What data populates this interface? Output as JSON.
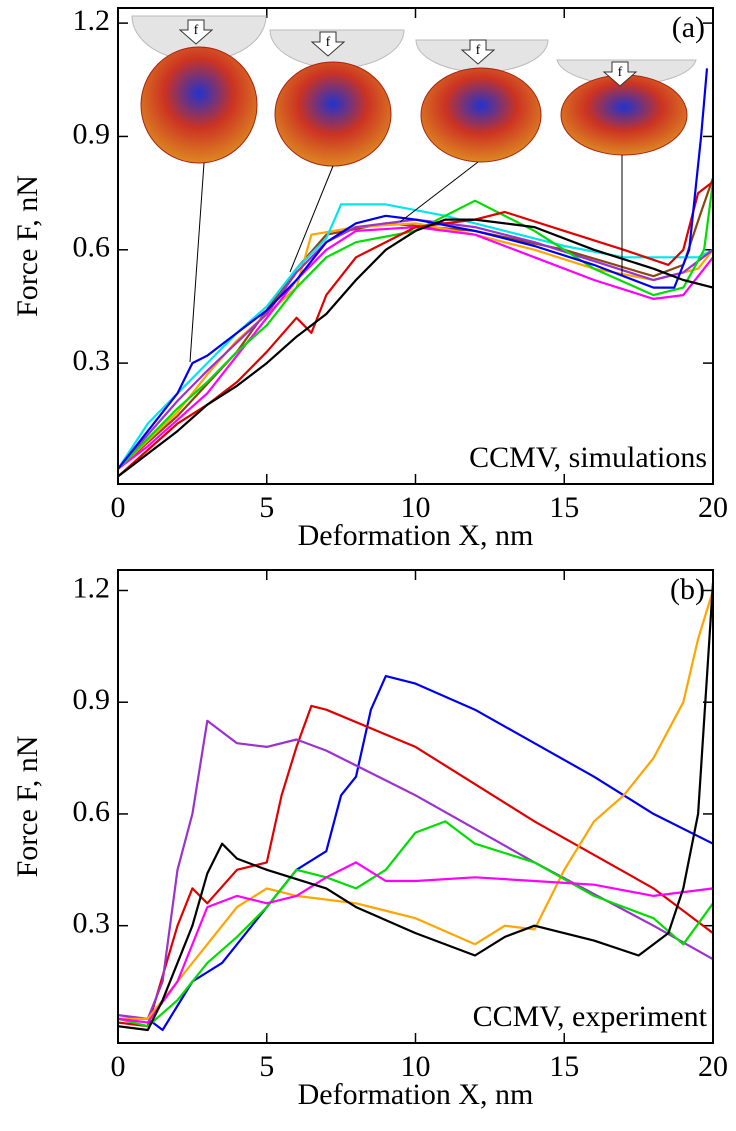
{
  "chart_data": [
    {
      "type": "line",
      "panel_label": "(a)",
      "annotation": "CCMV, simulations",
      "indenter_label": "f",
      "xlabel": "Deformation X, nm",
      "ylabel": "Force F, nN",
      "xlim": [
        0,
        20
      ],
      "xticks": [
        0,
        5,
        10,
        15,
        20
      ],
      "ylim": [
        -0.02,
        1.24
      ],
      "yticks": [
        0.3,
        0.6,
        0.9,
        1.2
      ],
      "grid": false,
      "series": [
        {
          "color": "#8b4513",
          "x": [
            0,
            2,
            4,
            6,
            7,
            9,
            12,
            15,
            18,
            19,
            19.6,
            20
          ],
          "values": [
            0.02,
            0.16,
            0.33,
            0.55,
            0.64,
            0.67,
            0.65,
            0.6,
            0.53,
            0.56,
            0.7,
            0.79
          ]
        },
        {
          "color": "#ffa500",
          "x": [
            0,
            2,
            3,
            4,
            5,
            6,
            6.5,
            8,
            10,
            12,
            14,
            16,
            18,
            19.5,
            20
          ],
          "values": [
            0.02,
            0.17,
            0.27,
            0.36,
            0.43,
            0.5,
            0.64,
            0.66,
            0.67,
            0.64,
            0.6,
            0.55,
            0.52,
            0.55,
            0.6
          ]
        },
        {
          "color": "#00e5ee",
          "x": [
            0,
            1,
            2,
            3,
            4,
            5,
            6,
            7,
            7.5,
            9,
            11,
            13,
            15,
            17,
            18.5,
            19.5,
            20
          ],
          "values": [
            0.02,
            0.14,
            0.22,
            0.3,
            0.38,
            0.45,
            0.55,
            0.63,
            0.72,
            0.72,
            0.69,
            0.65,
            0.61,
            0.58,
            0.58,
            0.58,
            0.6
          ]
        },
        {
          "color": "#9a32cd",
          "x": [
            0,
            2,
            3,
            5,
            6,
            7,
            8,
            10,
            12,
            14,
            16,
            18,
            19,
            20
          ],
          "values": [
            0.02,
            0.2,
            0.28,
            0.43,
            0.54,
            0.62,
            0.66,
            0.68,
            0.66,
            0.62,
            0.57,
            0.52,
            0.54,
            0.6
          ]
        },
        {
          "color": "#ff00ff",
          "x": [
            0,
            1,
            2,
            3,
            4,
            5,
            6,
            7,
            8,
            10,
            12,
            14,
            16,
            18,
            19,
            20
          ],
          "values": [
            0.02,
            0.08,
            0.15,
            0.22,
            0.32,
            0.42,
            0.52,
            0.6,
            0.65,
            0.66,
            0.64,
            0.58,
            0.52,
            0.47,
            0.48,
            0.58
          ]
        },
        {
          "color": "#00dd00",
          "x": [
            0,
            1,
            2,
            3,
            4,
            5,
            6,
            7,
            8,
            10,
            12,
            14,
            16,
            18,
            19,
            19.7,
            20
          ],
          "values": [
            0.02,
            0.1,
            0.18,
            0.25,
            0.33,
            0.4,
            0.5,
            0.58,
            0.62,
            0.65,
            0.73,
            0.65,
            0.55,
            0.48,
            0.5,
            0.6,
            0.78
          ]
        },
        {
          "color": "#e00000",
          "x": [
            0,
            1,
            2,
            3,
            4,
            5,
            6,
            6.5,
            7,
            8,
            10,
            12,
            13,
            15,
            17,
            18.5,
            19,
            19.5,
            20
          ],
          "values": [
            0,
            0.07,
            0.14,
            0.19,
            0.25,
            0.33,
            0.42,
            0.38,
            0.48,
            0.58,
            0.66,
            0.68,
            0.7,
            0.65,
            0.6,
            0.56,
            0.6,
            0.75,
            0.78
          ]
        },
        {
          "color": "#0000ee",
          "x": [
            0,
            1,
            2,
            2.5,
            3,
            4,
            5,
            6,
            7,
            8,
            9,
            10,
            12,
            14,
            16,
            18,
            18.7,
            19.2,
            19.6,
            19.8
          ],
          "values": [
            0.02,
            0.12,
            0.22,
            0.3,
            0.32,
            0.38,
            0.44,
            0.52,
            0.62,
            0.67,
            0.69,
            0.68,
            0.65,
            0.61,
            0.56,
            0.5,
            0.5,
            0.6,
            0.9,
            1.08
          ]
        },
        {
          "color": "#000000",
          "x": [
            0,
            1,
            2,
            3,
            4,
            5,
            6,
            7,
            8,
            9,
            10,
            11,
            12,
            14,
            16,
            18,
            19,
            20
          ],
          "values": [
            0,
            0.06,
            0.12,
            0.19,
            0.24,
            0.3,
            0.37,
            0.43,
            0.52,
            0.6,
            0.65,
            0.68,
            0.68,
            0.66,
            0.6,
            0.55,
            0.52,
            0.5
          ]
        }
      ]
    },
    {
      "type": "line",
      "panel_label": "(b)",
      "annotation": "CCMV, experiment",
      "xlabel": "Deformation X, nm",
      "ylabel": "Force F, nN",
      "xlim": [
        0,
        20
      ],
      "xticks": [
        0,
        5,
        10,
        15,
        20
      ],
      "ylim": [
        -0.015,
        1.255
      ],
      "yticks": [
        0.3,
        0.6,
        0.9,
        1.2
      ],
      "grid": false,
      "series": [
        {
          "color": "#0000ee",
          "x": [
            0,
            1,
            1.5,
            2.5,
            3.5,
            5,
            6,
            7,
            7.5,
            8,
            8.5,
            9,
            10,
            12,
            14,
            16,
            18,
            20
          ],
          "values": [
            0.05,
            0.05,
            0.02,
            0.15,
            0.2,
            0.35,
            0.45,
            0.5,
            0.65,
            0.7,
            0.88,
            0.97,
            0.95,
            0.88,
            0.79,
            0.7,
            0.6,
            0.52
          ]
        },
        {
          "color": "#e00000",
          "x": [
            0,
            1,
            2,
            2.5,
            3,
            4,
            5,
            5.5,
            6,
            6.5,
            7,
            10,
            14,
            18,
            20
          ],
          "values": [
            0.04,
            0.03,
            0.3,
            0.4,
            0.36,
            0.45,
            0.47,
            0.65,
            0.78,
            0.89,
            0.88,
            0.78,
            0.58,
            0.4,
            0.28
          ]
        },
        {
          "color": "#9a32cd",
          "x": [
            0,
            1,
            1.5,
            2,
            2.5,
            3,
            3.5,
            4,
            5,
            6,
            7,
            10,
            14,
            18,
            20
          ],
          "values": [
            0.06,
            0.05,
            0.15,
            0.45,
            0.6,
            0.85,
            0.82,
            0.79,
            0.78,
            0.8,
            0.77,
            0.65,
            0.47,
            0.3,
            0.21
          ]
        },
        {
          "color": "#ffa500",
          "x": [
            0,
            1,
            2,
            3,
            4,
            5,
            6,
            8,
            10,
            12,
            13,
            14,
            15,
            16,
            17,
            18,
            19,
            19.5,
            20
          ],
          "values": [
            0.05,
            0.05,
            0.15,
            0.25,
            0.35,
            0.4,
            0.38,
            0.36,
            0.32,
            0.25,
            0.3,
            0.29,
            0.45,
            0.58,
            0.65,
            0.75,
            0.9,
            1.07,
            1.2
          ]
        },
        {
          "color": "#00dd00",
          "x": [
            0,
            1,
            2,
            3,
            4,
            5,
            6,
            7,
            8,
            9,
            10,
            11,
            12,
            14,
            16,
            18,
            19,
            20
          ],
          "values": [
            0.05,
            0.03,
            0.1,
            0.2,
            0.27,
            0.35,
            0.45,
            0.43,
            0.4,
            0.45,
            0.55,
            0.58,
            0.52,
            0.47,
            0.38,
            0.32,
            0.25,
            0.36
          ]
        },
        {
          "color": "#ff00ff",
          "x": [
            0,
            1,
            2,
            3,
            4,
            5,
            6,
            7,
            8,
            9,
            10,
            12,
            14,
            16,
            18,
            20
          ],
          "values": [
            0.05,
            0.04,
            0.15,
            0.35,
            0.38,
            0.36,
            0.38,
            0.43,
            0.47,
            0.42,
            0.42,
            0.43,
            0.42,
            0.41,
            0.38,
            0.4
          ]
        },
        {
          "color": "#000000",
          "x": [
            0,
            1,
            1.5,
            2.5,
            3,
            3.5,
            4,
            5,
            7,
            8,
            10,
            12,
            13,
            14,
            16,
            17.5,
            18.5,
            19,
            19.5,
            20
          ],
          "values": [
            0.03,
            0.02,
            0.1,
            0.3,
            0.44,
            0.52,
            0.48,
            0.45,
            0.4,
            0.35,
            0.28,
            0.22,
            0.27,
            0.3,
            0.26,
            0.22,
            0.28,
            0.4,
            0.6,
            1.22
          ]
        }
      ]
    }
  ]
}
